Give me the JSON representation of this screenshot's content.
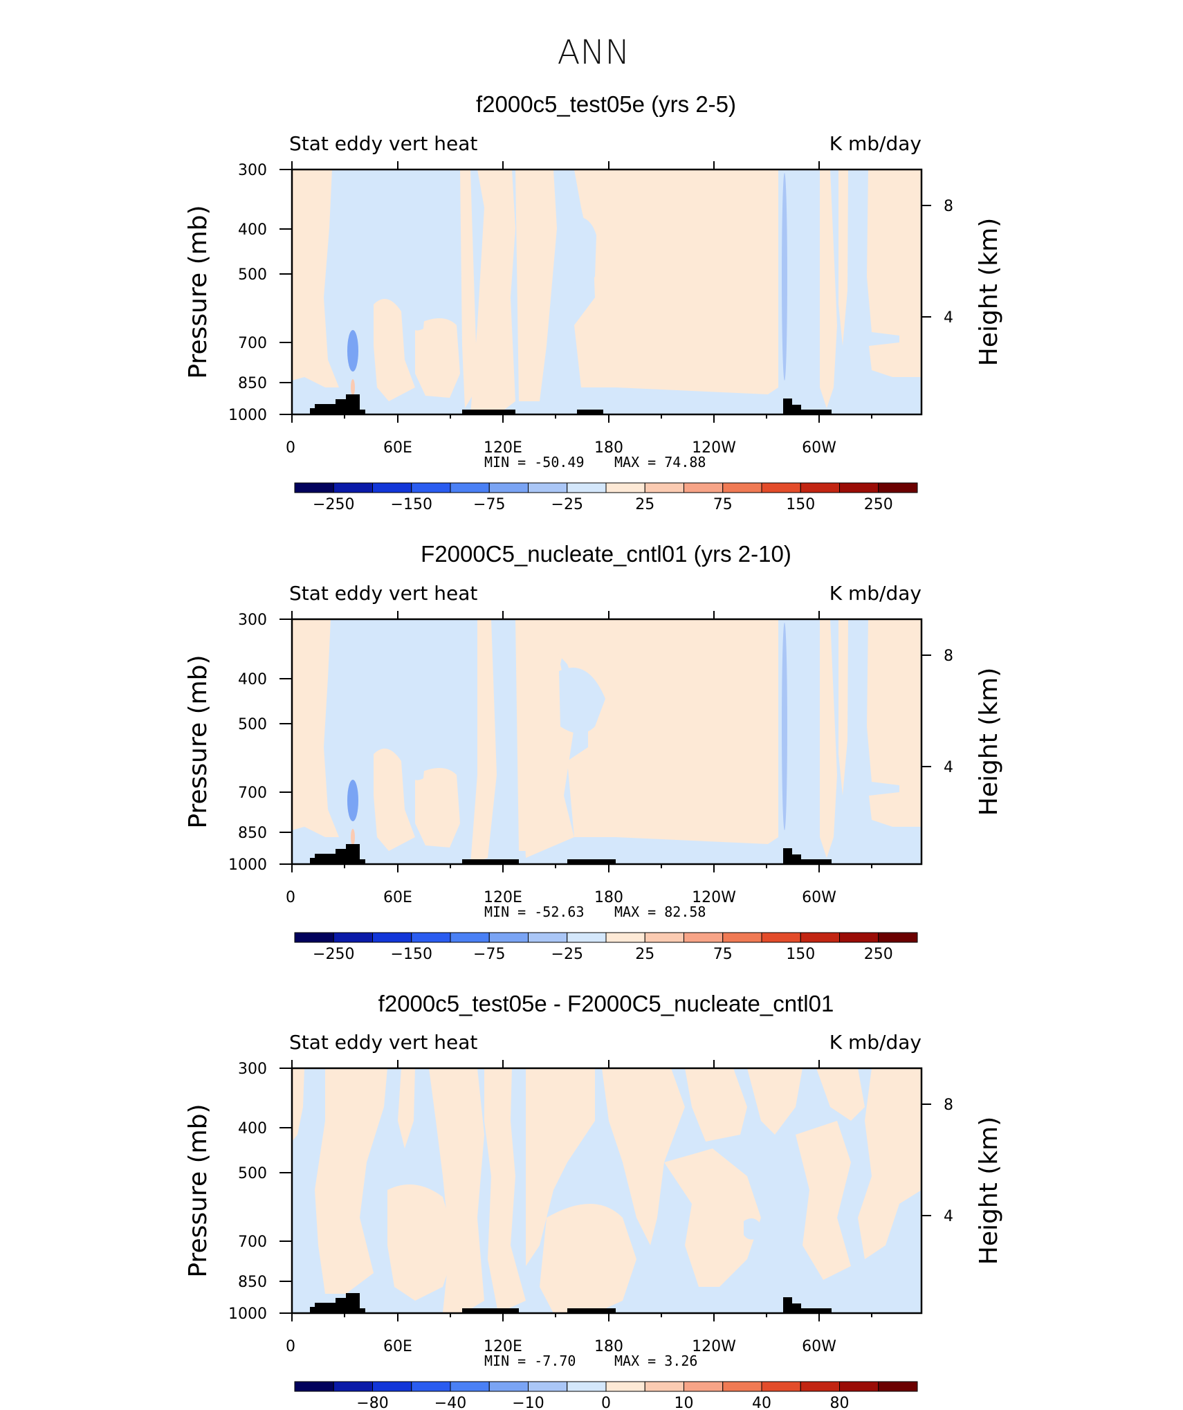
{
  "figure": {
    "title": "ANN"
  },
  "colorbar_colors": [
    "#02025c",
    "#0a1aa8",
    "#1236d8",
    "#2a5cf0",
    "#4a80f5",
    "#7aa4f4",
    "#aac6f6",
    "#d4e7fb",
    "#fde9d6",
    "#fbcbb2",
    "#f7a487",
    "#f07a54",
    "#e34c2a",
    "#c22512",
    "#9a0c06",
    "#6b0000"
  ],
  "chart_data": [
    {
      "type": "heatmap",
      "title": "f2000c5_test05e (yrs 2-5)",
      "left_label": "Stat eddy vert heat",
      "right_label": "K mb/day",
      "xlabel": "",
      "ylabel": "Pressure (mb)",
      "y2label": "Height (km)",
      "x_ticks": [
        "0",
        "60E",
        "120E",
        "180",
        "120W",
        "60W"
      ],
      "y_ticks": [
        "300",
        "400",
        "500",
        "700",
        "850",
        "1000"
      ],
      "y2_ticks": [
        "8",
        "4"
      ],
      "min_text": "MIN = -50.49",
      "max_text": "MAX = 74.88",
      "min": -50.49,
      "max": 74.88,
      "colorbar_levels": [
        -250,
        -200,
        -150,
        -100,
        -75,
        -50,
        -25,
        -10,
        10,
        25,
        50,
        75,
        100,
        150,
        200,
        250
      ],
      "colorbar_labels": [
        "-250",
        "-150",
        "-75",
        "-25",
        "25",
        "75",
        "150",
        "250"
      ],
      "field": "stationary eddy vertical heat flux, mostly between -25 and 25"
    },
    {
      "type": "heatmap",
      "title": "F2000C5_nucleate_cntl01 (yrs 2-10)",
      "left_label": "Stat eddy vert heat",
      "right_label": "K mb/day",
      "xlabel": "",
      "ylabel": "Pressure (mb)",
      "y2label": "Height (km)",
      "x_ticks": [
        "0",
        "60E",
        "120E",
        "180",
        "120W",
        "60W"
      ],
      "y_ticks": [
        "300",
        "400",
        "500",
        "700",
        "850",
        "1000"
      ],
      "y2_ticks": [
        "8",
        "4"
      ],
      "min_text": "MIN = -52.63",
      "max_text": "MAX = 82.58",
      "min": -52.63,
      "max": 82.58,
      "colorbar_levels": [
        -250,
        -200,
        -150,
        -100,
        -75,
        -50,
        -25,
        -10,
        10,
        25,
        50,
        75,
        100,
        150,
        200,
        250
      ],
      "colorbar_labels": [
        "-250",
        "-150",
        "-75",
        "-25",
        "25",
        "75",
        "150",
        "250"
      ],
      "field": "stationary eddy vertical heat flux, mostly between -25 and 25"
    },
    {
      "type": "heatmap",
      "title": "f2000c5_test05e - F2000C5_nucleate_cntl01",
      "left_label": "Stat eddy vert heat",
      "right_label": "K mb/day",
      "xlabel": "",
      "ylabel": "Pressure (mb)",
      "y2label": "Height (km)",
      "x_ticks": [
        "0",
        "60E",
        "120E",
        "180",
        "120W",
        "60W"
      ],
      "y_ticks": [
        "300",
        "400",
        "500",
        "700",
        "850",
        "1000"
      ],
      "y2_ticks": [
        "8",
        "4"
      ],
      "min_text": "MIN = -7.70",
      "max_text": "MAX = 3.26",
      "min": -7.7,
      "max": 3.26,
      "colorbar_levels": [
        -100,
        -80,
        -60,
        -40,
        -20,
        -10,
        -5,
        0,
        5,
        10,
        20,
        40,
        60,
        80,
        100
      ],
      "colorbar_labels": [
        "-80",
        "-40",
        "-10",
        "0",
        "10",
        "40",
        "80"
      ],
      "field": "difference, mostly between -5 and 5"
    }
  ]
}
